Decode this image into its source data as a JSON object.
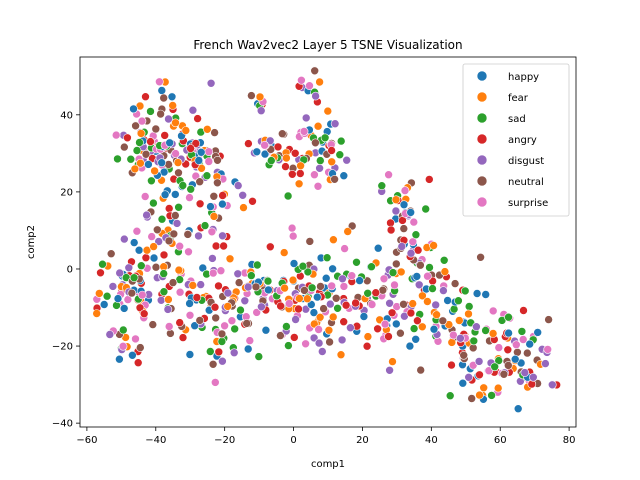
{
  "chart_data": {
    "type": "scatter",
    "title": "French Wav2vec2 Layer 5 TSNE Visualization",
    "xlabel": "comp1",
    "ylabel": "comp2",
    "xlim": [
      -62,
      82
    ],
    "ylim": [
      -41,
      55
    ],
    "xticks": [
      -60,
      -40,
      -20,
      0,
      20,
      40,
      60,
      80
    ],
    "yticks": [
      -40,
      -20,
      0,
      20,
      40
    ],
    "legend_position": "top-right",
    "series": [
      {
        "name": "happy",
        "color": "#1f77b4",
        "seed": 11
      },
      {
        "name": "fear",
        "color": "#ff7f0e",
        "seed": 23
      },
      {
        "name": "sad",
        "color": "#2ca02c",
        "seed": 37
      },
      {
        "name": "angry",
        "color": "#d62728",
        "seed": 41
      },
      {
        "name": "disgust",
        "color": "#9467bd",
        "seed": 53
      },
      {
        "name": "neutral",
        "color": "#8c564b",
        "seed": 67
      },
      {
        "name": "surprise",
        "color": "#e377c2",
        "seed": 79
      }
    ],
    "clusters": [
      {
        "cx": -37,
        "cy": 32,
        "sx": 6,
        "sy": 6,
        "n": 14
      },
      {
        "cx": -42,
        "cy": 30,
        "sx": 3,
        "sy": 3,
        "n": 3
      },
      {
        "cx": -26,
        "cy": 30,
        "sx": 3,
        "sy": 4,
        "n": 4
      },
      {
        "cx": -23,
        "cy": 16,
        "sx": 4,
        "sy": 5,
        "n": 4
      },
      {
        "cx": -38,
        "cy": 13,
        "sx": 3,
        "sy": 6,
        "n": 4
      },
      {
        "cx": -7,
        "cy": 31,
        "sx": 3,
        "sy": 2,
        "n": 3
      },
      {
        "cx": -8,
        "cy": 44,
        "sx": 2,
        "sy": 2,
        "n": 1
      },
      {
        "cx": 4,
        "cy": 31,
        "sx": 4,
        "sy": 5,
        "n": 6
      },
      {
        "cx": 6,
        "cy": 47,
        "sx": 3,
        "sy": 2,
        "n": 2
      },
      {
        "cx": 12,
        "cy": 28,
        "sx": 2,
        "sy": 5,
        "n": 2
      },
      {
        "cx": 32,
        "cy": 16,
        "sx": 4,
        "sy": 4,
        "n": 4
      },
      {
        "cx": 36,
        "cy": 6,
        "sx": 4,
        "sy": 4,
        "n": 3
      },
      {
        "cx": -50,
        "cy": -5,
        "sx": 5,
        "sy": 5,
        "n": 6
      },
      {
        "cx": -40,
        "cy": -5,
        "sx": 5,
        "sy": 8,
        "n": 7
      },
      {
        "cx": -22,
        "cy": -10,
        "sx": 7,
        "sy": 8,
        "n": 12
      },
      {
        "cx": -14,
        "cy": -5,
        "sx": 4,
        "sy": 5,
        "n": 4
      },
      {
        "cx": -6,
        "cy": -5,
        "sx": 3,
        "sy": 4,
        "n": 3
      },
      {
        "cx": 5,
        "cy": -8,
        "sx": 5,
        "sy": 8,
        "n": 9
      },
      {
        "cx": 14,
        "cy": -8,
        "sx": 5,
        "sy": 7,
        "n": 6
      },
      {
        "cx": 28,
        "cy": -8,
        "sx": 6,
        "sy": 7,
        "n": 9
      },
      {
        "cx": 40,
        "cy": -8,
        "sx": 5,
        "sy": 6,
        "n": 5
      },
      {
        "cx": 50,
        "cy": -16,
        "sx": 5,
        "sy": 7,
        "n": 5
      },
      {
        "cx": 58,
        "cy": -25,
        "sx": 5,
        "sy": 6,
        "n": 7
      },
      {
        "cx": 68,
        "cy": -22,
        "sx": 4,
        "sy": 6,
        "n": 5
      },
      {
        "cx": -48,
        "cy": -20,
        "sx": 3,
        "sy": 3,
        "n": 2
      }
    ]
  }
}
